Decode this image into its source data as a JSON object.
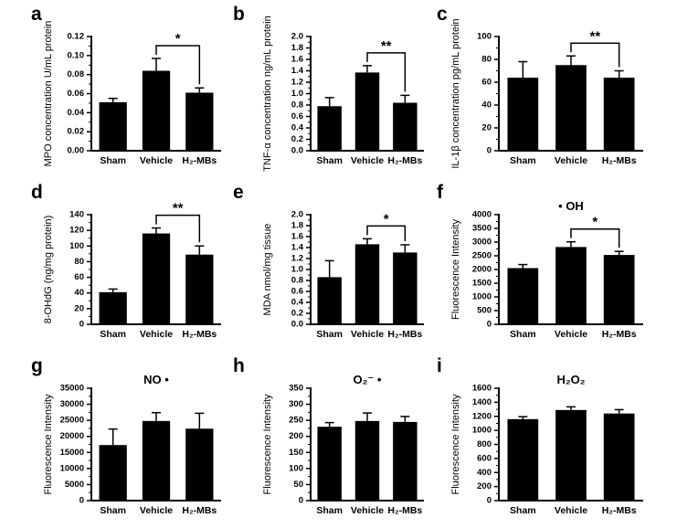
{
  "figure": {
    "background": "#ffffff",
    "bar_color": "#000000",
    "axis_color": "#000000",
    "text_color": "#000000"
  },
  "chart_data": [
    {
      "panel": "a",
      "type": "bar",
      "title": "",
      "ylabel": "MPO concentration U/mL protein",
      "categories": [
        "Sham",
        "Vehicle",
        "H₂-MBs"
      ],
      "values": [
        0.051,
        0.084,
        0.061
      ],
      "errors": [
        0.004,
        0.013,
        0.005
      ],
      "ylim": [
        0,
        0.12
      ],
      "yticks": [
        0,
        0.02,
        0.04,
        0.06,
        0.08,
        0.1,
        0.12
      ],
      "ytick_labels": [
        "0.00",
        "0.02",
        "0.04",
        "0.06",
        "0.08",
        "0.10",
        "0.12"
      ],
      "significance": {
        "from": 1,
        "to": 2,
        "label": "*"
      }
    },
    {
      "panel": "b",
      "type": "bar",
      "title": "",
      "ylabel": "TNF-α concentration ng/mL protein",
      "categories": [
        "Sham",
        "Vehicle",
        "H₂-MBs"
      ],
      "values": [
        0.78,
        1.37,
        0.84
      ],
      "errors": [
        0.15,
        0.12,
        0.13
      ],
      "ylim": [
        0,
        2.0
      ],
      "yticks": [
        0,
        0.2,
        0.4,
        0.6,
        0.8,
        1.0,
        1.2,
        1.4,
        1.6,
        1.8,
        2.0
      ],
      "ytick_labels": [
        "0.0",
        "0.2",
        "0.4",
        "0.6",
        "0.8",
        "1.0",
        "1.2",
        "1.4",
        "1.6",
        "1.8",
        "2.0"
      ],
      "significance": {
        "from": 1,
        "to": 2,
        "label": "**"
      }
    },
    {
      "panel": "c",
      "type": "bar",
      "title": "",
      "ylabel": "IL-1β concentration pg/mL protein",
      "categories": [
        "Sham",
        "Vehicle",
        "H₂-MBs"
      ],
      "values": [
        64,
        75,
        64
      ],
      "errors": [
        14,
        8,
        6
      ],
      "ylim": [
        0,
        100
      ],
      "yticks": [
        0,
        20,
        40,
        60,
        80,
        100
      ],
      "ytick_labels": [
        "0",
        "20",
        "40",
        "60",
        "80",
        "100"
      ],
      "significance": {
        "from": 1,
        "to": 2,
        "label": "**"
      }
    },
    {
      "panel": "d",
      "type": "bar",
      "title": "",
      "ylabel": "8-OHdG (ng/mg protein)",
      "categories": [
        "Sham",
        "Vehicle",
        "H₂-MBs"
      ],
      "values": [
        41,
        116,
        89
      ],
      "errors": [
        4,
        7,
        11
      ],
      "ylim": [
        0,
        140
      ],
      "yticks": [
        0,
        20,
        40,
        60,
        80,
        100,
        120,
        140
      ],
      "ytick_labels": [
        "0",
        "20",
        "40",
        "60",
        "80",
        "100",
        "120",
        "140"
      ],
      "significance": {
        "from": 1,
        "to": 2,
        "label": "**"
      }
    },
    {
      "panel": "e",
      "type": "bar",
      "title": "",
      "ylabel": "MDA nmol/mg tissue",
      "categories": [
        "Sham",
        "Vehicle",
        "H₂-MBs"
      ],
      "values": [
        0.86,
        1.46,
        1.31
      ],
      "errors": [
        0.3,
        0.1,
        0.14
      ],
      "ylim": [
        0,
        2.0
      ],
      "yticks": [
        0,
        0.2,
        0.4,
        0.6,
        0.8,
        1.0,
        1.2,
        1.4,
        1.6,
        1.8,
        2.0
      ],
      "ytick_labels": [
        "0.0",
        "0.2",
        "0.4",
        "0.6",
        "0.8",
        "1.0",
        "1.2",
        "1.4",
        "1.6",
        "1.8",
        "2.0"
      ],
      "significance": {
        "from": 1,
        "to": 2,
        "label": "*"
      }
    },
    {
      "panel": "f",
      "type": "bar",
      "title": "• OH",
      "ylabel": "Fluorescence Intensity",
      "categories": [
        "Sham",
        "Vehicle",
        "H₂-MBs"
      ],
      "values": [
        2050,
        2820,
        2530
      ],
      "errors": [
        130,
        190,
        130
      ],
      "ylim": [
        0,
        4000
      ],
      "yticks": [
        0,
        500,
        1000,
        1500,
        2000,
        2500,
        3000,
        3500,
        4000
      ],
      "ytick_labels": [
        "0",
        "500",
        "1000",
        "1500",
        "2000",
        "2500",
        "3000",
        "3500",
        "4000"
      ],
      "significance": {
        "from": 1,
        "to": 2,
        "label": "*"
      }
    },
    {
      "panel": "g",
      "type": "bar",
      "title": "NO •",
      "ylabel": "Fluorescence Intensity",
      "categories": [
        "Sham",
        "Vehicle",
        "H₂-MBs"
      ],
      "values": [
        17300,
        24800,
        22400
      ],
      "errors": [
        5000,
        2600,
        4800
      ],
      "ylim": [
        0,
        35000
      ],
      "yticks": [
        0,
        5000,
        10000,
        15000,
        20000,
        25000,
        30000,
        35000
      ],
      "ytick_labels": [
        "0",
        "5000",
        "10000",
        "15000",
        "20000",
        "25000",
        "30000",
        "35000"
      ],
      "significance": null
    },
    {
      "panel": "h",
      "type": "bar",
      "title": "O₂⁻ •",
      "ylabel": "Fluorescence Intensity",
      "categories": [
        "Sham",
        "Vehicle",
        "H₂-MBs"
      ],
      "values": [
        230,
        248,
        245
      ],
      "errors": [
        13,
        25,
        17
      ],
      "ylim": [
        0,
        350
      ],
      "yticks": [
        0,
        50,
        100,
        150,
        200,
        250,
        300,
        350
      ],
      "ytick_labels": [
        "0",
        "50",
        "100",
        "150",
        "200",
        "250",
        "300",
        "350"
      ],
      "significance": null
    },
    {
      "panel": "i",
      "type": "bar",
      "title": "H₂O₂",
      "ylabel": "Fluorescence Intensity",
      "categories": [
        "Sham",
        "Vehicle",
        "H₂-MBs"
      ],
      "values": [
        1160,
        1290,
        1240
      ],
      "errors": [
        35,
        45,
        55
      ],
      "ylim": [
        0,
        1600
      ],
      "yticks": [
        0,
        200,
        400,
        600,
        800,
        1000,
        1200,
        1400,
        1600
      ],
      "ytick_labels": [
        "0",
        "200",
        "400",
        "600",
        "800",
        "1000",
        "1200",
        "1400",
        "1600"
      ],
      "significance": null
    }
  ]
}
